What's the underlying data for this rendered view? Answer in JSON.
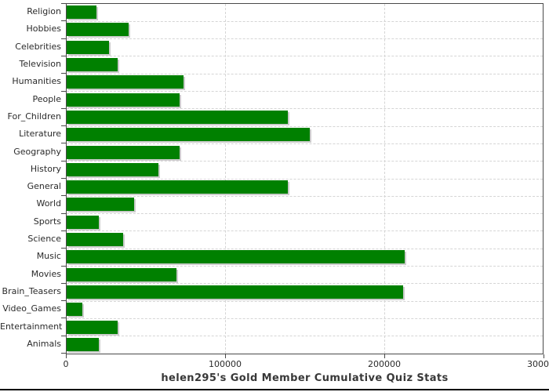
{
  "chart_data": {
    "type": "bar",
    "orientation": "horizontal",
    "title": "helen295's Gold Member Cumulative Quiz Stats",
    "categories": [
      "Religion",
      "Hobbies",
      "Celebrities",
      "Television",
      "Humanities",
      "People",
      "For_Children",
      "Literature",
      "Geography",
      "History",
      "General",
      "World",
      "Sports",
      "Science",
      "Music",
      "Movies",
      "Brain_Teasers",
      "Video_Games",
      "Entertainment",
      "Animals"
    ],
    "values": [
      19000,
      39000,
      26500,
      32000,
      73500,
      71000,
      139500,
      153000,
      71000,
      58000,
      139500,
      42500,
      20500,
      35500,
      213000,
      69000,
      212000,
      10000,
      32000,
      20500
    ],
    "xlabel": "",
    "ylabel": "",
    "xlim": [
      0,
      300000
    ],
    "x_ticks": [
      0,
      100000,
      200000,
      300000
    ],
    "x_tick_labels": [
      "0",
      "100000",
      "200000",
      "300000"
    ],
    "grid": "dashed",
    "legend": "none",
    "colors": {
      "bar": "#008000",
      "bar_shadow": "#cccccc",
      "gridline": "#d5d5d5",
      "frame": "#4a4a4a",
      "text": "#2b2b2b",
      "title": "#383838",
      "bottom_rule": "#000000"
    }
  }
}
